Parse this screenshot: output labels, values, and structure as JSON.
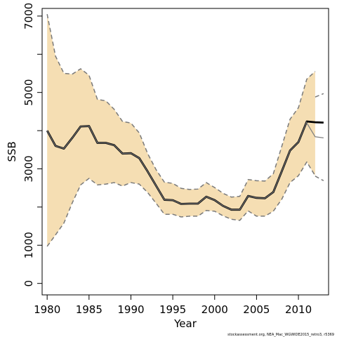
{
  "chart_data": {
    "type": "line",
    "title": "",
    "xlabel": "Year",
    "ylabel": "SSB",
    "xlim": [
      1979.4,
      2013.6
    ],
    "ylim": [
      -300,
      7200
    ],
    "x_ticks": [
      1980,
      1985,
      1990,
      1995,
      2000,
      2005,
      2010
    ],
    "y_ticks": [
      0,
      1000,
      3000,
      5000,
      7000
    ],
    "y_ticks_unlabeled": [
      2000,
      4000,
      6000
    ],
    "grid": false,
    "legend": "none",
    "colors": {
      "band_fill": "#f5deb3",
      "bound_line": "#7a7a7a",
      "estimate_line": "#000000",
      "retro_line": "#808080"
    },
    "series": [
      {
        "role": "band",
        "x": [
          1980,
          1981,
          1982,
          1983,
          1984,
          1985,
          1986,
          1987,
          1988,
          1989,
          1990,
          1991,
          1992,
          1993,
          1994,
          1995,
          1996,
          1997,
          1998,
          1999,
          2000,
          2001,
          2002,
          2003,
          2004,
          2005,
          2006,
          2007,
          2008,
          2009,
          2010,
          2011,
          2012
        ],
        "upper": [
          7050,
          5950,
          5500,
          5480,
          5620,
          5450,
          4820,
          4780,
          4560,
          4240,
          4200,
          3940,
          3400,
          2980,
          2650,
          2620,
          2490,
          2460,
          2470,
          2640,
          2510,
          2360,
          2260,
          2280,
          2720,
          2690,
          2680,
          2870,
          3580,
          4300,
          4600,
          5350,
          5550
        ],
        "lower": [
          970,
          1270,
          1580,
          2110,
          2580,
          2750,
          2580,
          2600,
          2640,
          2550,
          2640,
          2600,
          2380,
          2100,
          1810,
          1810,
          1740,
          1760,
          1760,
          1910,
          1890,
          1770,
          1680,
          1650,
          1900,
          1760,
          1760,
          1890,
          2200,
          2640,
          2820,
          3180,
          2820
        ]
      },
      {
        "role": "estimate",
        "x": [
          1980,
          1981,
          1982,
          1983,
          1984,
          1985,
          1986,
          1987,
          1988,
          1989,
          1990,
          1991,
          1992,
          1993,
          1994,
          1995,
          1996,
          1997,
          1998,
          1999,
          2000,
          2001,
          2002,
          2003,
          2004,
          2005,
          2006,
          2007,
          2008,
          2009,
          2010,
          2011,
          2012,
          2013
        ],
        "y": [
          4000,
          3600,
          3530,
          3810,
          4110,
          4120,
          3680,
          3680,
          3620,
          3400,
          3410,
          3280,
          2930,
          2560,
          2190,
          2180,
          2080,
          2090,
          2090,
          2270,
          2180,
          2030,
          1930,
          1930,
          2290,
          2240,
          2230,
          2390,
          2930,
          3480,
          3700,
          4240,
          4220,
          4210
        ]
      },
      {
        "role": "retro-upper",
        "x": [
          2012,
          2013
        ],
        "y": [
          4880,
          4970
        ]
      },
      {
        "role": "retro-estimate",
        "x": [
          2011,
          2012,
          2013
        ],
        "y": [
          4200,
          3840,
          3810
        ]
      },
      {
        "role": "retro-lower",
        "x": [
          2012,
          2013
        ],
        "y": [
          2810,
          2690
        ]
      }
    ],
    "footnote": "stockassessment.org, NEA_Mac_WGWIDE2015_retro3, r5369"
  }
}
